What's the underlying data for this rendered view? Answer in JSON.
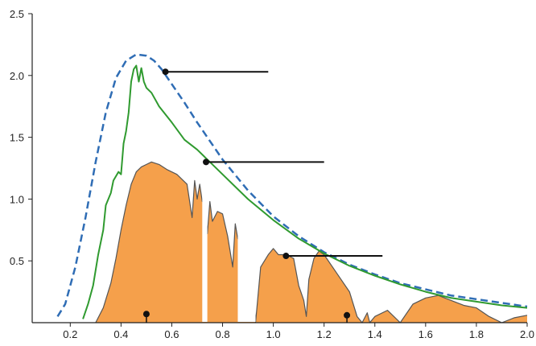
{
  "chart_data": {
    "type": "area",
    "title": "",
    "xlabel": "",
    "ylabel": "",
    "xlim": [
      0.05,
      2.0
    ],
    "ylim": [
      0,
      2.5
    ],
    "x_ticks": [
      "0.2",
      "0.4",
      "0.6",
      "0.8",
      "1.0",
      "1.2",
      "1.4",
      "1.6",
      "1.8",
      "2.0"
    ],
    "x_tick_values": [
      0.2,
      0.4,
      0.6,
      0.8,
      1.0,
      1.2,
      1.4,
      1.6,
      1.8,
      2.0
    ],
    "y_ticks": [
      "0.5",
      "1.0",
      "1.5",
      "2.0",
      "2.5"
    ],
    "y_tick_values": [
      0.5,
      1.0,
      1.5,
      2.0,
      2.5
    ],
    "grid": false,
    "colors": {
      "dashed": "#2f6db5",
      "green": "#2f9a2f",
      "fill": "#f5a04b",
      "fill_outline": "#555555",
      "pointer": "#111111",
      "axis": "#222222"
    },
    "series": [
      {
        "style": "dashed",
        "x": [
          0.15,
          0.18,
          0.22,
          0.26,
          0.3,
          0.34,
          0.38,
          0.42,
          0.46,
          0.5,
          0.53,
          0.56,
          0.6,
          0.65,
          0.7,
          0.8,
          0.9,
          1.0,
          1.1,
          1.2,
          1.3,
          1.4,
          1.5,
          1.6,
          1.7,
          1.8,
          1.9,
          2.0
        ],
        "y": [
          0.05,
          0.15,
          0.45,
          0.85,
          1.3,
          1.7,
          1.98,
          2.12,
          2.17,
          2.16,
          2.12,
          2.05,
          1.93,
          1.78,
          1.62,
          1.32,
          1.07,
          0.86,
          0.7,
          0.57,
          0.47,
          0.39,
          0.32,
          0.27,
          0.22,
          0.19,
          0.16,
          0.13
        ]
      },
      {
        "style": "solid",
        "x": [
          0.25,
          0.27,
          0.29,
          0.31,
          0.33,
          0.34,
          0.36,
          0.37,
          0.39,
          0.4,
          0.41,
          0.42,
          0.43,
          0.44,
          0.45,
          0.46,
          0.47,
          0.48,
          0.49,
          0.5,
          0.52,
          0.55,
          0.6,
          0.65,
          0.7,
          0.75,
          0.8,
          0.9,
          1.0,
          1.1,
          1.2,
          1.3,
          1.4,
          1.5,
          1.6,
          1.7,
          1.8,
          1.9,
          2.0
        ],
        "y": [
          0.03,
          0.15,
          0.3,
          0.55,
          0.75,
          0.95,
          1.05,
          1.15,
          1.22,
          1.2,
          1.45,
          1.55,
          1.7,
          1.95,
          2.05,
          2.08,
          1.95,
          2.06,
          1.95,
          1.9,
          1.86,
          1.75,
          1.62,
          1.48,
          1.4,
          1.3,
          1.2,
          1.0,
          0.83,
          0.68,
          0.56,
          0.46,
          0.38,
          0.31,
          0.25,
          0.2,
          0.17,
          0.14,
          0.12
        ]
      },
      {
        "style": "filled",
        "x": [
          0.3,
          0.33,
          0.36,
          0.38,
          0.4,
          0.42,
          0.44,
          0.46,
          0.48,
          0.5,
          0.52,
          0.55,
          0.58,
          0.62,
          0.66,
          0.68,
          0.69,
          0.7,
          0.71,
          0.72,
          0.73,
          0.74,
          0.75,
          0.76,
          0.78,
          0.8,
          0.82,
          0.84,
          0.85,
          0.86,
          0.88,
          0.9,
          0.91,
          0.92,
          0.93,
          0.95,
          0.98,
          1.0,
          1.02,
          1.05,
          1.08,
          1.1,
          1.12,
          1.13,
          1.14,
          1.16,
          1.18,
          1.2,
          1.25,
          1.3,
          1.33,
          1.35,
          1.37,
          1.38,
          1.4,
          1.45,
          1.5,
          1.55,
          1.6,
          1.65,
          1.7,
          1.75,
          1.8,
          1.85,
          1.9,
          1.95,
          2.0
        ],
        "y": [
          0.0,
          0.12,
          0.32,
          0.52,
          0.75,
          0.95,
          1.12,
          1.22,
          1.26,
          1.28,
          1.3,
          1.28,
          1.24,
          1.2,
          1.12,
          0.85,
          1.15,
          1.0,
          1.12,
          0.98,
          1.05,
          0.72,
          0.98,
          0.82,
          0.9,
          0.88,
          0.7,
          0.45,
          0.8,
          0.68,
          0.62,
          0.55,
          0.28,
          0.45,
          0.0,
          0.45,
          0.55,
          0.6,
          0.55,
          0.55,
          0.52,
          0.3,
          0.18,
          0.05,
          0.35,
          0.52,
          0.58,
          0.55,
          0.4,
          0.25,
          0.05,
          0.0,
          0.08,
          0.0,
          0.05,
          0.1,
          0.0,
          0.15,
          0.2,
          0.22,
          0.18,
          0.14,
          0.12,
          0.05,
          0.0,
          0.04,
          0.06
        ]
      }
    ],
    "gaps": [
      [
        0.72,
        0.74
      ],
      [
        0.86,
        0.93
      ]
    ],
    "pointers": [
      {
        "x1": 0.575,
        "y1": 2.03,
        "x2": 0.98
      },
      {
        "x1": 0.735,
        "y1": 1.3,
        "x2": 1.2
      },
      {
        "x1": 1.05,
        "y1": 0.54,
        "x2": 1.43
      }
    ],
    "baseline_markers": [
      {
        "x": 0.5,
        "y": 0.07
      },
      {
        "x": 1.29,
        "y": 0.06
      }
    ]
  }
}
